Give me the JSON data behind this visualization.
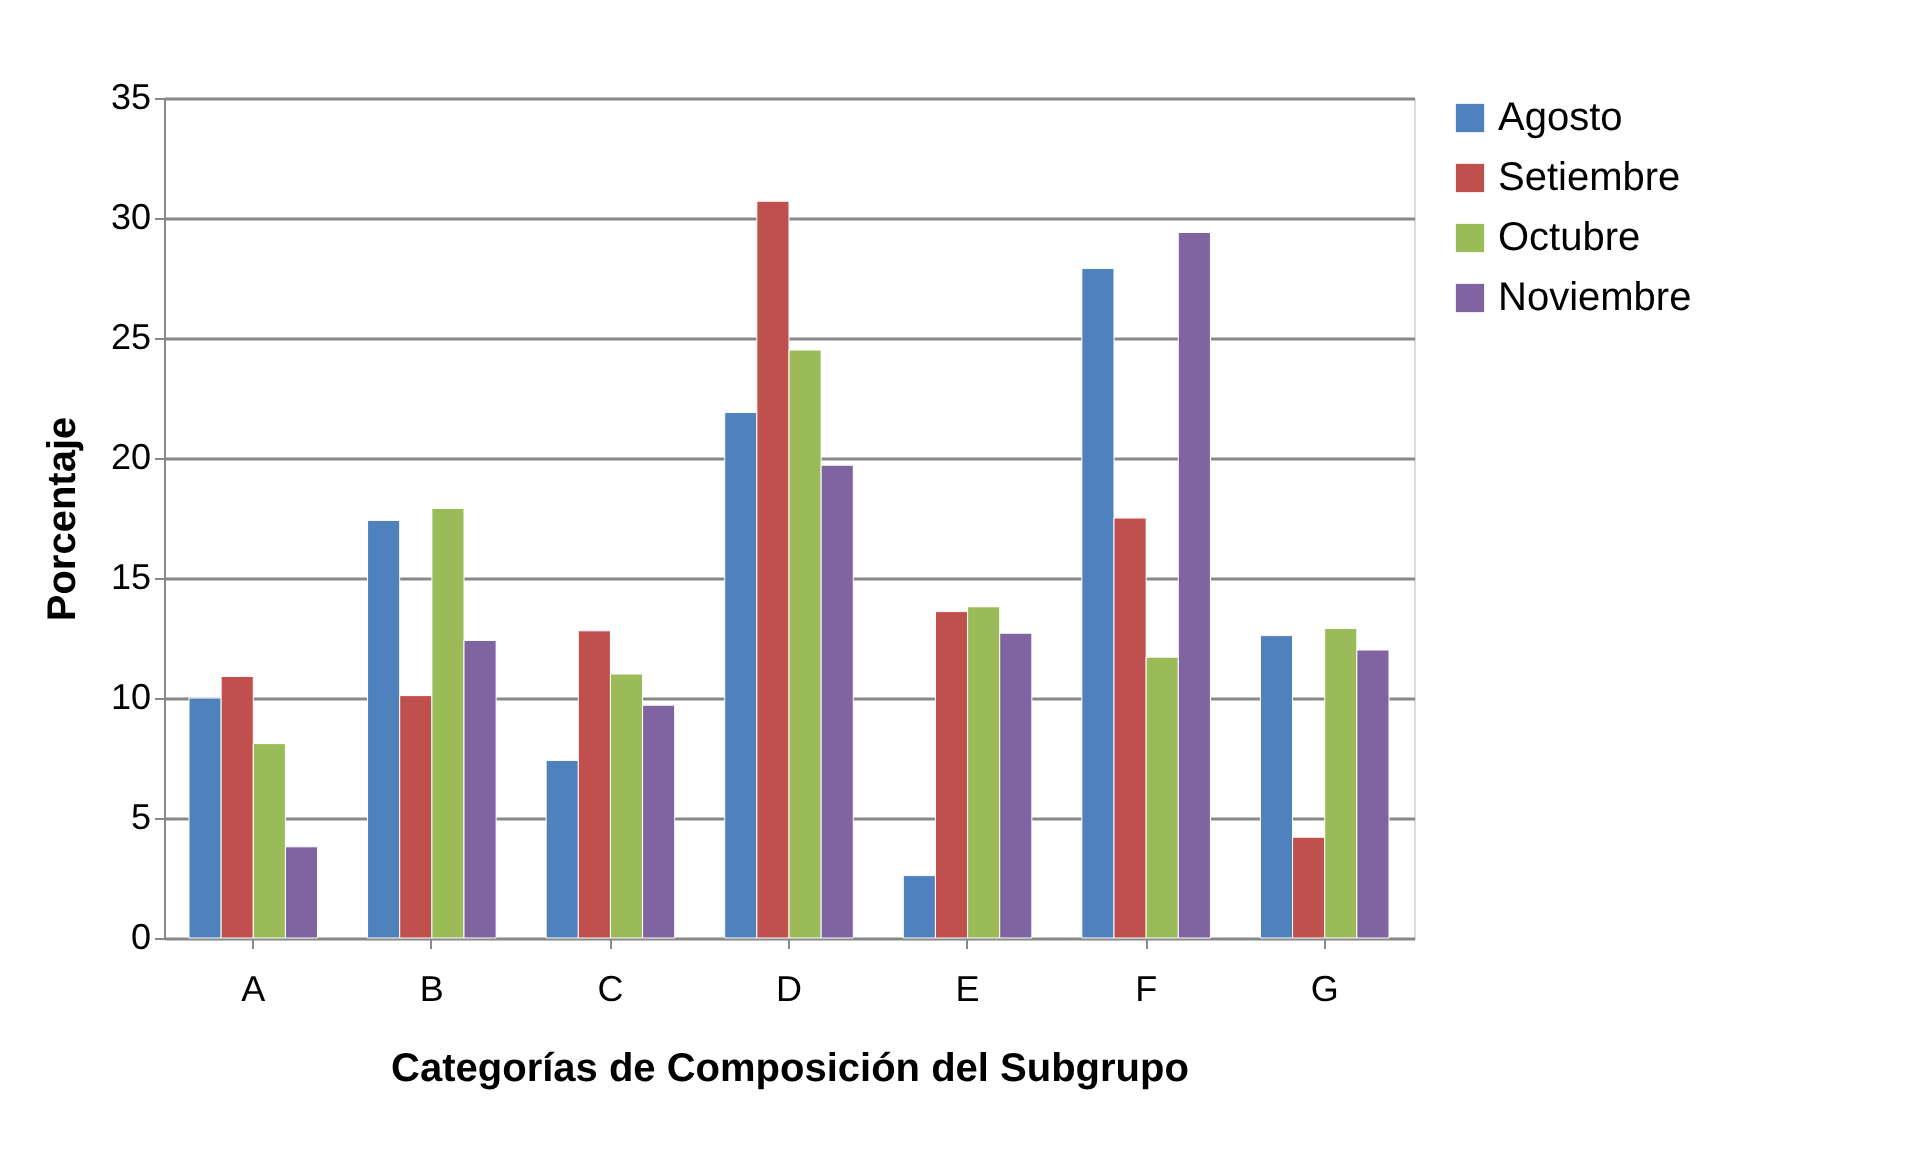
{
  "chart_data": {
    "type": "bar",
    "xlabel": "Categorías de Composición del Subgrupo",
    "ylabel": "Porcentaje",
    "categories": [
      "A",
      "B",
      "C",
      "D",
      "E",
      "F",
      "G"
    ],
    "series": [
      {
        "name": "Agosto",
        "color": "#4f81bd",
        "values": [
          10.0,
          17.4,
          7.4,
          21.9,
          2.6,
          27.9,
          12.6
        ]
      },
      {
        "name": "Setiembre",
        "color": "#c0504d",
        "values": [
          10.9,
          10.1,
          12.8,
          30.7,
          13.6,
          17.5,
          4.2
        ]
      },
      {
        "name": "Octubre",
        "color": "#9bbb59",
        "values": [
          8.1,
          17.9,
          11.0,
          24.5,
          13.8,
          11.7,
          12.9
        ]
      },
      {
        "name": "Noviembre",
        "color": "#8064a2",
        "values": [
          3.8,
          12.4,
          9.7,
          19.7,
          12.7,
          29.4,
          12.0
        ]
      }
    ],
    "ylim": [
      0,
      35
    ],
    "yticks": [
      0,
      5,
      10,
      15,
      20,
      25,
      30,
      35
    ],
    "grid": "y",
    "legend": "right"
  }
}
